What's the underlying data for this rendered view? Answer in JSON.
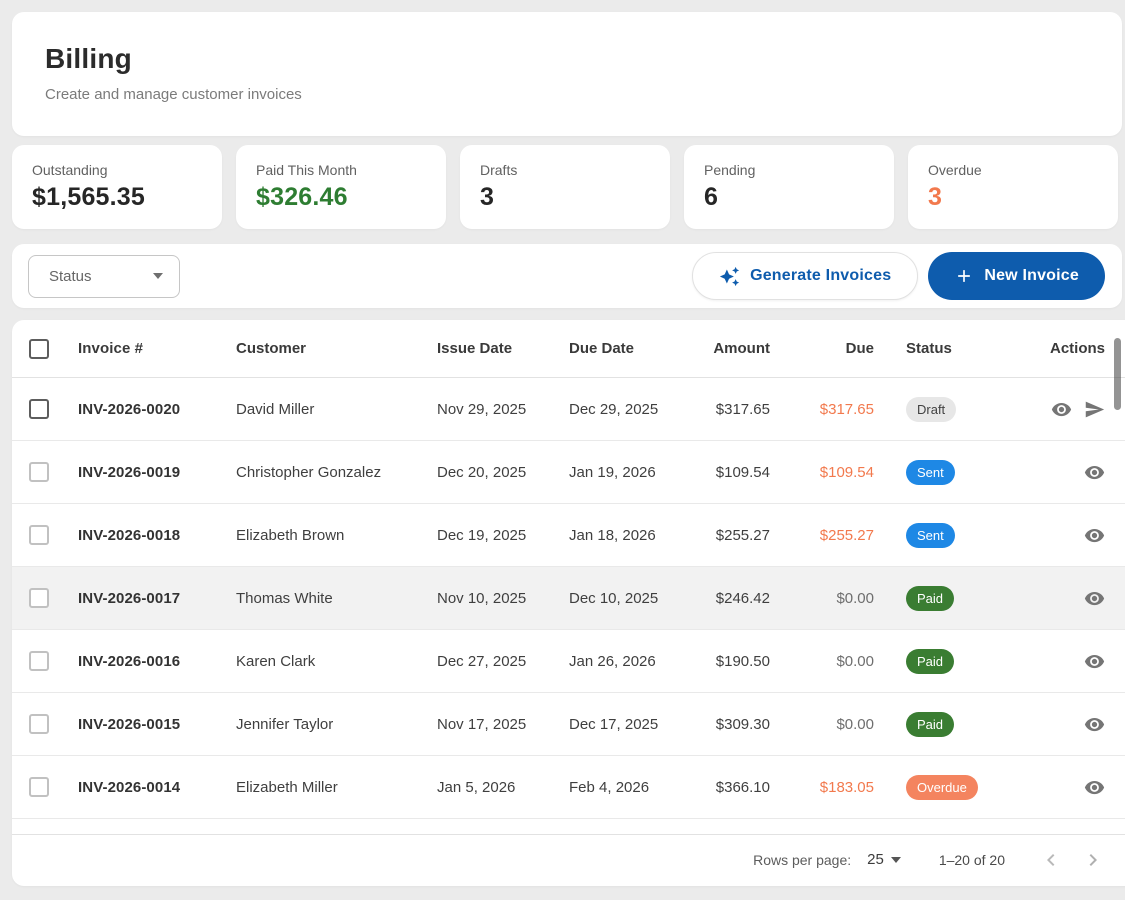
{
  "header": {
    "title": "Billing",
    "subtitle": "Create and manage customer invoices"
  },
  "stats": [
    {
      "label": "Outstanding",
      "value": "$1,565.35",
      "variant": "default"
    },
    {
      "label": "Paid This Month",
      "value": "$326.46",
      "variant": "success"
    },
    {
      "label": "Drafts",
      "value": "3",
      "variant": "default"
    },
    {
      "label": "Pending",
      "value": "6",
      "variant": "default"
    },
    {
      "label": "Overdue",
      "value": "3",
      "variant": "warning"
    }
  ],
  "toolbar": {
    "status_filter_label": "Status",
    "generate_button_label": "Generate Invoices",
    "new_invoice_button_label": "New Invoice"
  },
  "table": {
    "columns": [
      {
        "key": "invoice",
        "label": "Invoice #"
      },
      {
        "key": "customer",
        "label": "Customer"
      },
      {
        "key": "issue",
        "label": "Issue Date"
      },
      {
        "key": "duedate",
        "label": "Due Date"
      },
      {
        "key": "amount",
        "label": "Amount"
      },
      {
        "key": "due",
        "label": "Due"
      },
      {
        "key": "status",
        "label": "Status"
      },
      {
        "key": "actions",
        "label": "Actions"
      }
    ],
    "rows": [
      {
        "invoice": "INV-2026-0020",
        "customer": "David Miller",
        "issue_date": "Nov 29, 2025",
        "due_date": "Dec 29, 2025",
        "amount": "$317.65",
        "due": "$317.65",
        "due_outstanding": true,
        "status": "Draft",
        "status_variant": "draft",
        "actions": [
          "view",
          "send"
        ],
        "checkbox_emphasized": true,
        "highlighted": false
      },
      {
        "invoice": "INV-2026-0019",
        "customer": "Christopher Gonzalez",
        "issue_date": "Dec 20, 2025",
        "due_date": "Jan 19, 2026",
        "amount": "$109.54",
        "due": "$109.54",
        "due_outstanding": true,
        "status": "Sent",
        "status_variant": "sent",
        "actions": [
          "view"
        ],
        "checkbox_emphasized": false,
        "highlighted": false
      },
      {
        "invoice": "INV-2026-0018",
        "customer": "Elizabeth Brown",
        "issue_date": "Dec 19, 2025",
        "due_date": "Jan 18, 2026",
        "amount": "$255.27",
        "due": "$255.27",
        "due_outstanding": true,
        "status": "Sent",
        "status_variant": "sent",
        "actions": [
          "view"
        ],
        "checkbox_emphasized": false,
        "highlighted": false
      },
      {
        "invoice": "INV-2026-0017",
        "customer": "Thomas White",
        "issue_date": "Nov 10, 2025",
        "due_date": "Dec 10, 2025",
        "amount": "$246.42",
        "due": "$0.00",
        "due_outstanding": false,
        "status": "Paid",
        "status_variant": "paid",
        "actions": [
          "view"
        ],
        "checkbox_emphasized": false,
        "highlighted": true
      },
      {
        "invoice": "INV-2026-0016",
        "customer": "Karen Clark",
        "issue_date": "Dec 27, 2025",
        "due_date": "Jan 26, 2026",
        "amount": "$190.50",
        "due": "$0.00",
        "due_outstanding": false,
        "status": "Paid",
        "status_variant": "paid",
        "actions": [
          "view"
        ],
        "checkbox_emphasized": false,
        "highlighted": false
      },
      {
        "invoice": "INV-2026-0015",
        "customer": "Jennifer Taylor",
        "issue_date": "Nov 17, 2025",
        "due_date": "Dec 17, 2025",
        "amount": "$309.30",
        "due": "$0.00",
        "due_outstanding": false,
        "status": "Paid",
        "status_variant": "paid",
        "actions": [
          "view"
        ],
        "checkbox_emphasized": false,
        "highlighted": false
      },
      {
        "invoice": "INV-2026-0014",
        "customer": "Elizabeth Miller",
        "issue_date": "Jan 5, 2026",
        "due_date": "Feb 4, 2026",
        "amount": "$366.10",
        "due": "$183.05",
        "due_outstanding": true,
        "status": "Overdue",
        "status_variant": "overdue",
        "actions": [
          "view"
        ],
        "checkbox_emphasized": false,
        "highlighted": false
      }
    ]
  },
  "pagination": {
    "rows_per_page_label": "Rows per page:",
    "rows_per_page_value": "25",
    "range_label": "1–20 of 20"
  },
  "icons": {
    "generate": "sparkle-icon",
    "new_invoice": "plus-icon",
    "view": "eye-icon",
    "send": "send-icon",
    "status_filter": "caret-down-icon",
    "prev_page": "chevron-left-icon",
    "next_page": "chevron-right-icon"
  },
  "colors": {
    "accent_blue": "#0e5cad",
    "sent_blue": "#1e88e5",
    "paid_green": "#3a7d32",
    "success_green": "#2e7d32",
    "overdue_orange": "#f4845f",
    "due_orange": "#f2794d",
    "page_background": "#ebebeb"
  }
}
